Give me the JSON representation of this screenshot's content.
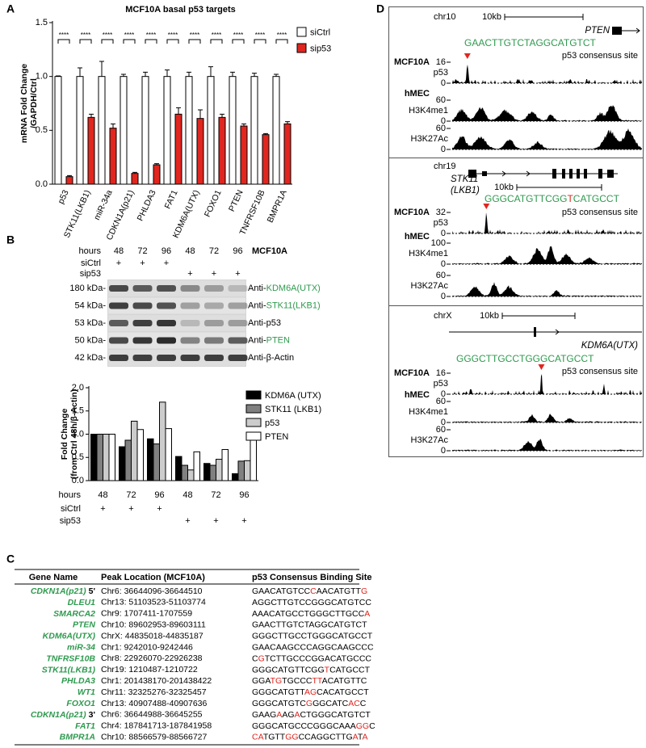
{
  "panel_labels": [
    "A",
    "B",
    "C",
    "D"
  ],
  "chart_data": [
    {
      "type": "bar",
      "title": "MCF10A basal p53 targets",
      "y_label": [
        "mRNA Fold Change",
        "/GAPDH/Ctrl"
      ],
      "categories": [
        "p53",
        "STK11(LKB1)",
        "miR-34a",
        "CDKN1A(p21)",
        "PHLDA3",
        "FAT1",
        "KDM6A(UTX)",
        "FOXO1",
        "PTEN",
        "TNFRSF10B",
        "BMPR1A"
      ],
      "category_colors": [
        "#000000",
        "#2f9a4f",
        "#2f9a4f",
        "#2f9a4f",
        "#2f9a4f",
        "#2f9a4f",
        "#2f9a4f",
        "#2f9a4f",
        "#2f9a4f",
        "#2f9a4f",
        "#2f9a4f"
      ],
      "series": [
        {
          "name": "siCtrl",
          "color": "#ffffff",
          "values": [
            1,
            1,
            1,
            1,
            1,
            1,
            1,
            1,
            1,
            1,
            1
          ],
          "errors": [
            0.005,
            0.08,
            0.14,
            0.02,
            0.04,
            0.06,
            0.04,
            0.09,
            0.04,
            0.03,
            0.02
          ]
        },
        {
          "name": "sip53",
          "color": "#e0261f",
          "values": [
            0.07,
            0.62,
            0.52,
            0.1,
            0.18,
            0.65,
            0.61,
            0.62,
            0.54,
            0.46,
            0.56
          ],
          "errors": [
            0.01,
            0.03,
            0.04,
            0.01,
            0.01,
            0.06,
            0.08,
            0.03,
            0.02,
            0.01,
            0.02
          ]
        }
      ],
      "significance": [
        "****",
        "****",
        "****",
        "****",
        "****",
        "****",
        "****",
        "****",
        "****",
        "****",
        "****"
      ],
      "ylim": [
        0,
        1.5
      ],
      "yticks": [
        {
          "value": 0,
          "label": "0.0"
        },
        0.5,
        {
          "value": 1,
          "label": "1.0"
        },
        1.5
      ],
      "legend": "upper right"
    },
    {
      "type": "bar",
      "y_label": [
        "Fold Change",
        "(from Ctrl 48h/β-Actin)"
      ],
      "x_label": "hours",
      "categories": [
        "48",
        "72",
        "96",
        "48",
        "72",
        "96"
      ],
      "category_colors": [
        "#000000",
        "#000000",
        "#000000",
        "#e0261f",
        "#e0261f",
        "#e0261f"
      ],
      "series": [
        {
          "name": "KDM6A (UTX)",
          "color": "#000000",
          "values": [
            1,
            0.73,
            0.9,
            0.52,
            0.37,
            0.15
          ]
        },
        {
          "name": "STK11 (LKB1)",
          "color": "#808080",
          "values": [
            1,
            0.87,
            0.79,
            0.33,
            0.33,
            0.42
          ]
        },
        {
          "name": "p53",
          "color": "#cccccc",
          "values": [
            1,
            1.28,
            1.69,
            0.23,
            0.46,
            0.43
          ]
        },
        {
          "name": "PTEN",
          "color": "#ffffff",
          "values": [
            1,
            1.1,
            1.12,
            0.62,
            0.67,
            0.95
          ]
        }
      ],
      "conditions": [
        {
          "name": "siCtrl",
          "color": "#000000",
          "marks": [
            "+",
            "+",
            "+",
            null,
            null,
            null
          ]
        },
        {
          "name": "sip53",
          "color": "#e0261f",
          "marks": [
            null,
            null,
            null,
            "+",
            "+",
            "+"
          ]
        }
      ],
      "ylim": [
        0,
        2
      ],
      "yticks": [
        {
          "value": 0,
          "label": "0.0"
        },
        0.5,
        {
          "value": 1,
          "label": "1.0"
        },
        1.5,
        {
          "value": 2,
          "label": "2.0"
        }
      ],
      "legend": "upper right"
    }
  ],
  "blot": {
    "hours_label": "hours",
    "hours": [
      "48",
      "72",
      "96",
      "48",
      "72",
      "96"
    ],
    "hours_colors": [
      "#000000",
      "#000000",
      "#000000",
      "#e0261f",
      "#e0261f",
      "#e0261f"
    ],
    "cell_line": "MCF10A",
    "conditions": [
      {
        "name": "siCtrl",
        "color": "#000000",
        "marks": [
          "+",
          "+",
          "+",
          null,
          null,
          null
        ]
      },
      {
        "name": "sip53",
        "color": "#e0261f",
        "marks": [
          null,
          null,
          null,
          "+",
          "+",
          "+"
        ]
      }
    ],
    "rows": [
      {
        "size": "180 kDa-",
        "prefix": "Anti-",
        "target": "KDM6A(UTX)",
        "color": "#2f9a4f"
      },
      {
        "size": "54 kDa-",
        "prefix": "Anti-",
        "target": "STK11(LKB1)",
        "color": "#2f9a4f"
      },
      {
        "size": "53 kDa-",
        "prefix": "Anti-",
        "target": "p53",
        "color": "#000000"
      },
      {
        "size": "50 kDa-",
        "prefix": "Anti-",
        "target": "PTEN",
        "color": "#2f9a4f"
      },
      {
        "size": "42 kDa-",
        "prefix": "Anti-",
        "target": "β-Actin",
        "color": "#000000"
      }
    ]
  },
  "table": {
    "header": [
      "Gene Name",
      "Peak Location (MCF10A)",
      "p53 Consensus Binding Site"
    ],
    "gene_color": "#2f9a4f",
    "rows": [
      {
        "gene": "CDKN1A(p21)",
        "suffix": "5'",
        "location": "Chr6: 36644096-36644510",
        "site": [
          [
            "GAACATGTCC",
            "#000000"
          ],
          [
            "C",
            "#e0261f"
          ],
          [
            "AACATGTT",
            "#000000"
          ],
          [
            "G",
            "#e0261f"
          ]
        ]
      },
      {
        "gene": "DLEU1",
        "location": "Chr13: 51103523-51103774",
        "site": [
          [
            "AGGCTTGTCCGGGCATGTCC",
            "#000000"
          ]
        ]
      },
      {
        "gene": "SMARCA2",
        "location": "Chr9: 1707411-1707559",
        "site": [
          [
            "AAACATGCCTGGGCTTGCC",
            "#000000"
          ],
          [
            "A",
            "#e0261f"
          ]
        ]
      },
      {
        "gene": "PTEN",
        "location": "Chr10: 89602953-89603111",
        "site": [
          [
            "GAACTTGTCTAGGCATGTCT",
            "#000000"
          ]
        ]
      },
      {
        "gene": "KDM6A(UTX)",
        "location": "ChrX: 44835018-44835187",
        "site": [
          [
            "GGGCTTGCCTGGGCATGCCT",
            "#000000"
          ]
        ]
      },
      {
        "gene": "miR-34",
        "location": "Chr1: 9242010-9242446",
        "site": [
          [
            "GAACAAGCCCAGGCAAGCCC",
            "#000000"
          ]
        ]
      },
      {
        "gene": "TNFRSF10B",
        "location": "Chr8: 22926070-22926238",
        "site": [
          [
            "C",
            "#000000"
          ],
          [
            "G",
            "#e0261f"
          ],
          [
            "TCTTGCCCGGACATGCCC",
            "#000000"
          ]
        ]
      },
      {
        "gene": "STK11(LKB1)",
        "location": "Chr19: 1210487-1210722",
        "site": [
          [
            "GGGCATGTTCGG",
            "#000000"
          ],
          [
            "T",
            "#e0261f"
          ],
          [
            "CATGCCT",
            "#000000"
          ]
        ]
      },
      {
        "gene": "PHLDA3",
        "location": "Chr1: 201438170-201438422",
        "site": [
          [
            "GGA",
            "#000000"
          ],
          [
            "TG",
            "#e0261f"
          ],
          [
            "TGCCC",
            "#000000"
          ],
          [
            "TT",
            "#e0261f"
          ],
          [
            "ACATGTTC",
            "#000000"
          ]
        ]
      },
      {
        "gene": "WT1",
        "location": "Chr11: 32325276-32325457",
        "site": [
          [
            "GGGCATGTT",
            "#000000"
          ],
          [
            "AG",
            "#e0261f"
          ],
          [
            "CACATGCCT",
            "#000000"
          ]
        ]
      },
      {
        "gene": "FOXO1",
        "location": "Chr13: 40907488-40907636",
        "site": [
          [
            "GGGCATGTC",
            "#000000"
          ],
          [
            "G",
            "#e0261f"
          ],
          [
            "GGCATC",
            "#000000"
          ],
          [
            "AC",
            "#e0261f"
          ],
          [
            "C",
            "#000000"
          ]
        ]
      },
      {
        "gene": "CDKN1A(p21)",
        "suffix": "3'",
        "location": "Chr6: 36644988-36645255",
        "site": [
          [
            "GAAG",
            "#000000"
          ],
          [
            "A",
            "#e0261f"
          ],
          [
            "AG",
            "#000000"
          ],
          [
            "A",
            "#e0261f"
          ],
          [
            "CTGGGCATGTCT",
            "#000000"
          ]
        ]
      },
      {
        "gene": "FAT1",
        "location": "Chr4: 187841713-187841958",
        "site": [
          [
            "GGGCATGCCCGGGCAAA",
            "#000000"
          ],
          [
            "GG",
            "#e0261f"
          ],
          [
            "C",
            "#000000"
          ]
        ]
      },
      {
        "gene": "BMPR1A",
        "location": "Chr10: 88566579-88566727",
        "site": [
          [
            "CA",
            "#e0261f"
          ],
          [
            "TGTT",
            "#000000"
          ],
          [
            "GG",
            "#e0261f"
          ],
          [
            "CCAGGCTTG",
            "#000000"
          ],
          [
            "A",
            "#e0261f"
          ],
          [
            "T",
            "#000000"
          ],
          [
            "A",
            "#e0261f"
          ]
        ]
      }
    ]
  },
  "genome": {
    "gene_color": "#2f9a4f",
    "peak_color": "#e0261f",
    "blocks": [
      {
        "chr": "chr10",
        "scale": "10kb",
        "gene": [
          "PTEN"
        ],
        "site": [
          [
            "GAACTTGTCTAGGCATGTCT",
            "#2f9a4f"
          ]
        ],
        "site_label": "p53 consensus site",
        "tracks": [
          {
            "cell": "MCF10A",
            "mark": "p53",
            "ymax": 16,
            "ymin": 0
          },
          {
            "cell": "hMEC",
            "mark": "H3K4me1",
            "ymax": 60,
            "ymin": 0
          },
          {
            "mark": "H3K27Ac",
            "ymax": 60,
            "ymin": 0
          }
        ]
      },
      {
        "chr": "chr19",
        "scale": "10kb",
        "gene": [
          "STK11",
          "(LKB1)"
        ],
        "site": [
          [
            "GGGCATGTTCGG",
            "#2f9a4f"
          ],
          [
            "T",
            "#e0261f"
          ],
          [
            "CATGCCT",
            "#2f9a4f"
          ]
        ],
        "site_label": "p53 consensus site",
        "tracks": [
          {
            "cell": "MCF10A",
            "mark": "p53",
            "ymax": 32,
            "ymin": 0
          },
          {
            "cell": "hMEC",
            "mark": "H3K4me1",
            "ymax": 100,
            "ymin": 0
          },
          {
            "mark": "H3K27Ac",
            "ymax": 60,
            "ymin": 0
          }
        ]
      },
      {
        "chr": "chrX",
        "scale": "10kb",
        "gene": [
          "KDM6A(UTX)"
        ],
        "site": [
          [
            "GGGCTTGCCTGGGCATGCCT",
            "#2f9a4f"
          ]
        ],
        "site_label": "p53 consensus site",
        "tracks": [
          {
            "cell": "MCF10A",
            "mark": "p53",
            "ymax": 16,
            "ymin": 0
          },
          {
            "cell": "hMEC",
            "mark": "H3K4me1",
            "ymax": 60,
            "ymin": 0
          },
          {
            "mark": "H3K27Ac",
            "ymax": 60,
            "ymin": 0
          }
        ]
      }
    ]
  }
}
